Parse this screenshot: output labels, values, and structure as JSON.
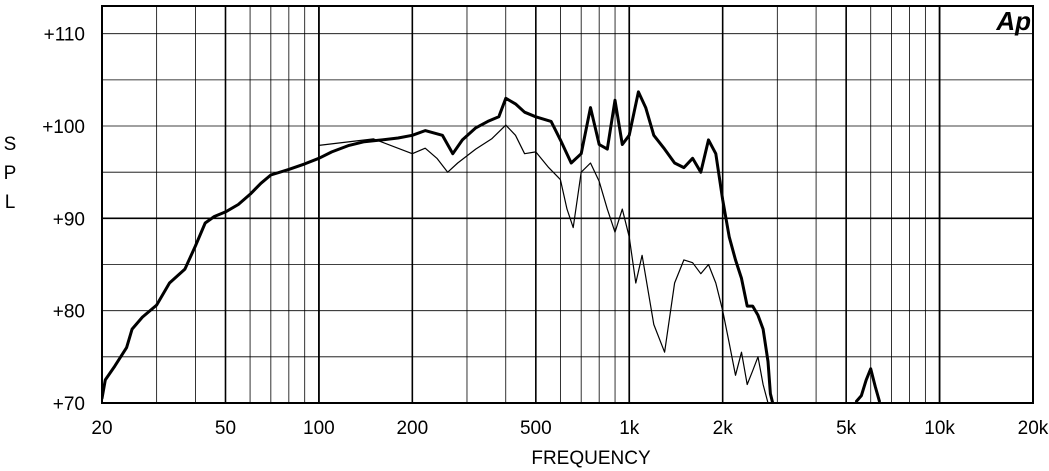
{
  "chart_data": {
    "type": "line",
    "logo": "Ap",
    "xlabel": "FREQUENCY",
    "ylabel": "SPL",
    "x_scale": "log",
    "xlim": [
      20,
      20000
    ],
    "ylim": [
      70,
      113
    ],
    "grid": true,
    "x_ticks": [
      {
        "value": 20,
        "label": "20"
      },
      {
        "value": 50,
        "label": "50"
      },
      {
        "value": 100,
        "label": "100"
      },
      {
        "value": 200,
        "label": "200"
      },
      {
        "value": 500,
        "label": "500"
      },
      {
        "value": 1000,
        "label": "1k"
      },
      {
        "value": 2000,
        "label": "2k"
      },
      {
        "value": 5000,
        "label": "5k"
      },
      {
        "value": 10000,
        "label": "10k"
      },
      {
        "value": 20000,
        "label": "20k"
      }
    ],
    "y_ticks": [
      {
        "value": 70,
        "label": "+70"
      },
      {
        "value": 80,
        "label": "+80"
      },
      {
        "value": 90,
        "label": "+90"
      },
      {
        "value": 100,
        "label": "+100"
      },
      {
        "value": 110,
        "label": "+110"
      }
    ],
    "series": [
      {
        "style": "thick",
        "points": [
          [
            20,
            70.5
          ],
          [
            20.5,
            72.5
          ],
          [
            22,
            74
          ],
          [
            24,
            76
          ],
          [
            25,
            78
          ],
          [
            27,
            79.3
          ],
          [
            30,
            80.6
          ],
          [
            33,
            83
          ],
          [
            37,
            84.5
          ],
          [
            40,
            87
          ],
          [
            43,
            89.5
          ],
          [
            46,
            90.2
          ],
          [
            50,
            90.7
          ],
          [
            55,
            91.5
          ],
          [
            60,
            92.6
          ],
          [
            65,
            93.8
          ],
          [
            70,
            94.7
          ],
          [
            80,
            95.3
          ],
          [
            90,
            95.9
          ],
          [
            100,
            96.5
          ],
          [
            110,
            97.2
          ],
          [
            125,
            97.9
          ],
          [
            140,
            98.3
          ],
          [
            160,
            98.5
          ],
          [
            180,
            98.7
          ],
          [
            200,
            99
          ],
          [
            220,
            99.5
          ],
          [
            250,
            99
          ],
          [
            270,
            97
          ],
          [
            290,
            98.5
          ],
          [
            320,
            99.8
          ],
          [
            350,
            100.5
          ],
          [
            380,
            101
          ],
          [
            400,
            103
          ],
          [
            430,
            102.4
          ],
          [
            460,
            101.5
          ],
          [
            500,
            101
          ],
          [
            560,
            100.5
          ],
          [
            600,
            98.5
          ],
          [
            650,
            96
          ],
          [
            700,
            97
          ],
          [
            750,
            102
          ],
          [
            800,
            98
          ],
          [
            850,
            97.5
          ],
          [
            900,
            102.8
          ],
          [
            950,
            98
          ],
          [
            1000,
            99
          ],
          [
            1070,
            103.7
          ],
          [
            1130,
            102
          ],
          [
            1200,
            99
          ],
          [
            1300,
            97.5
          ],
          [
            1400,
            96
          ],
          [
            1500,
            95.5
          ],
          [
            1600,
            96.5
          ],
          [
            1700,
            95
          ],
          [
            1800,
            98.5
          ],
          [
            1900,
            97
          ],
          [
            2000,
            92
          ],
          [
            2100,
            88
          ],
          [
            2200,
            85.5
          ],
          [
            2300,
            83.5
          ],
          [
            2400,
            80.5
          ],
          [
            2500,
            80.5
          ],
          [
            2600,
            79.5
          ],
          [
            2700,
            78
          ],
          [
            2800,
            74.5
          ],
          [
            2850,
            71
          ],
          [
            2900,
            70
          ]
        ]
      },
      {
        "style": "thin",
        "points": [
          [
            100,
            97.9
          ],
          [
            150,
            98.6
          ],
          [
            200,
            97
          ],
          [
            220,
            97.6
          ],
          [
            240,
            96.5
          ],
          [
            260,
            95
          ],
          [
            280,
            96
          ],
          [
            320,
            97.5
          ],
          [
            360,
            98.6
          ],
          [
            400,
            100.1
          ],
          [
            430,
            99
          ],
          [
            460,
            97
          ],
          [
            500,
            97.2
          ],
          [
            550,
            95.5
          ],
          [
            600,
            94.2
          ],
          [
            630,
            91
          ],
          [
            660,
            89
          ],
          [
            700,
            95
          ],
          [
            750,
            96
          ],
          [
            800,
            94
          ],
          [
            850,
            91
          ],
          [
            900,
            88.5
          ],
          [
            950,
            91
          ],
          [
            1000,
            88
          ],
          [
            1050,
            83
          ],
          [
            1100,
            86
          ],
          [
            1200,
            78.5
          ],
          [
            1300,
            75.5
          ],
          [
            1400,
            83
          ],
          [
            1500,
            85.5
          ],
          [
            1600,
            85.2
          ],
          [
            1700,
            84
          ],
          [
            1800,
            85
          ],
          [
            1900,
            83
          ],
          [
            2000,
            80
          ],
          [
            2100,
            76.5
          ],
          [
            2200,
            73
          ],
          [
            2300,
            75.5
          ],
          [
            2400,
            72
          ],
          [
            2500,
            73.5
          ],
          [
            2600,
            75
          ],
          [
            2700,
            72
          ],
          [
            2800,
            70
          ]
        ]
      },
      {
        "style": "thick",
        "points": [
          [
            5400,
            70.2
          ],
          [
            5600,
            70.8
          ],
          [
            5800,
            72.5
          ],
          [
            6000,
            73.7
          ],
          [
            6200,
            71.8
          ],
          [
            6400,
            70.2
          ]
        ]
      }
    ]
  }
}
